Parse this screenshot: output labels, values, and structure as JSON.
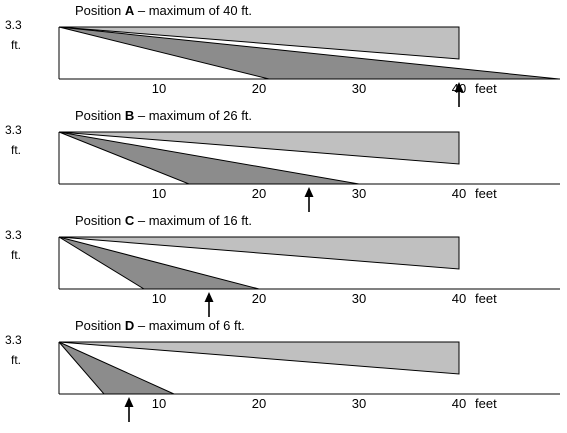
{
  "diagram": {
    "feet_label": "feet",
    "max_feet": 50,
    "panels": [
      {
        "title_prefix": "Position ",
        "title_letter": "A",
        "title_suffix": " – maximum of 40 ft.",
        "y_label_line1": "3.3",
        "y_label_line2": "ft.",
        "light_end_ft": 40,
        "dark_end_ft": 50,
        "dark_mid_ft": 21,
        "arrow_ft": 40,
        "ticks": [
          "10",
          "20",
          "30",
          "40"
        ]
      },
      {
        "title_prefix": "Position ",
        "title_letter": "B",
        "title_suffix": " – maximum of 26 ft.",
        "y_label_line1": "3.3",
        "y_label_line2": "ft.",
        "light_end_ft": 40,
        "dark_end_ft": 30,
        "dark_mid_ft": 13,
        "arrow_ft": 25,
        "ticks": [
          "10",
          "20",
          "30",
          "40"
        ]
      },
      {
        "title_prefix": "Position ",
        "title_letter": "C",
        "title_suffix": " – maximum of 16 ft.",
        "y_label_line1": "3.3",
        "y_label_line2": "ft.",
        "light_end_ft": 40,
        "dark_end_ft": 20,
        "dark_mid_ft": 8.5,
        "arrow_ft": 15,
        "ticks": [
          "10",
          "20",
          "30",
          "40"
        ]
      },
      {
        "title_prefix": "Position ",
        "title_letter": "D",
        "title_suffix": " – maximum of 6 ft.",
        "y_label_line1": "3.3",
        "y_label_line2": "ft.",
        "light_end_ft": 40,
        "dark_end_ft": 11.5,
        "dark_mid_ft": 4.5,
        "arrow_ft": 7,
        "ticks": [
          "10",
          "20",
          "30",
          "40"
        ]
      }
    ],
    "colors": {
      "light": "#c0c0c0",
      "dark": "#8c8c8c",
      "line": "#000000"
    }
  }
}
